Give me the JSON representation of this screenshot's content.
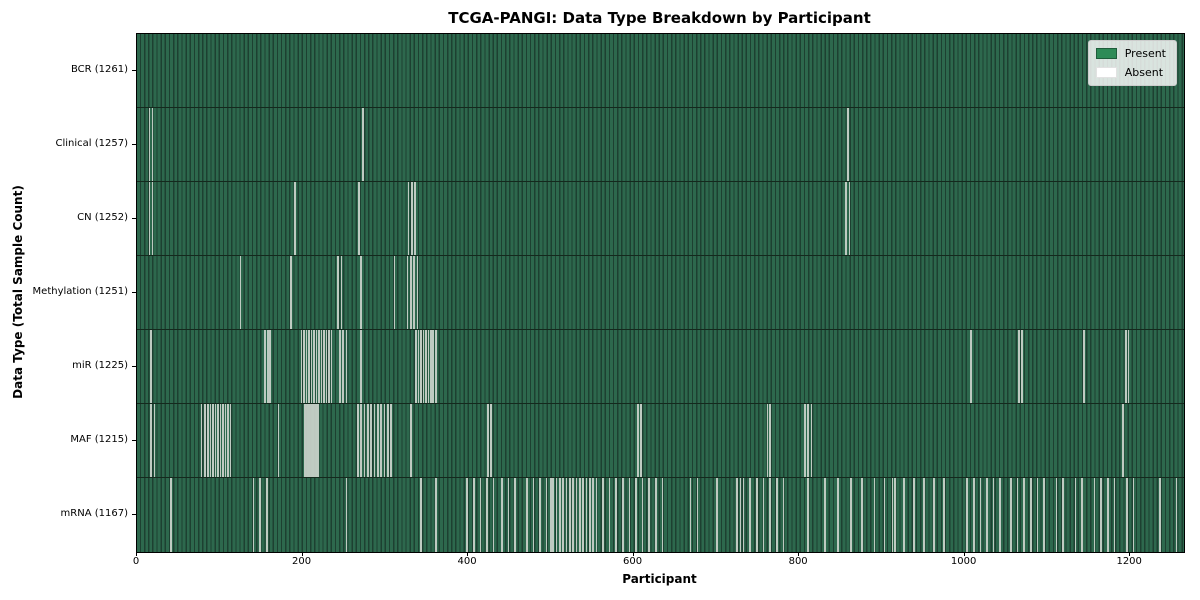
{
  "title": "TCGA-PANGI: Data Type Breakdown by Participant",
  "colors": {
    "present": "#2e8b57",
    "absent": "#ffffff",
    "cell_fill": "#2d684d",
    "cell_edge": "#1d4031",
    "row_divider": "#14291d",
    "legend_bg": "#d9ddd9",
    "axis": "#000000"
  },
  "legend": {
    "present_label": "Present",
    "absent_label": "Absent"
  },
  "chart_data": {
    "type": "heatmap",
    "title": "TCGA-PANGI: Data Type Breakdown by Participant",
    "xlabel": "Participant",
    "ylabel": "Data Type (Total Sample Count)",
    "legend": [
      "Present",
      "Absent"
    ],
    "legend_position": "upper right",
    "grid": false,
    "xlim": [
      0,
      1265
    ],
    "x_ticks": [
      0,
      200,
      400,
      600,
      800,
      1000,
      1200
    ],
    "n_participants": 1261,
    "rows": [
      {
        "name": "bcr",
        "label": "BCR (1261)",
        "data_type": "BCR",
        "sample_count": 1261,
        "absent_count": 0,
        "absent_participants": []
      },
      {
        "name": "clinical",
        "label": "Clinical (1257)",
        "data_type": "Clinical",
        "sample_count": 1257,
        "absent_count": 4,
        "absent_participants": [
          14,
          18,
          272,
          858
        ]
      },
      {
        "name": "cn",
        "label": "CN (1252)",
        "data_type": "CN",
        "sample_count": 1252,
        "absent_count": 9,
        "absent_participants": [
          14,
          18,
          190,
          267,
          327,
          331,
          335,
          856,
          860
        ]
      },
      {
        "name": "methylation",
        "label": "Methylation (1251)",
        "data_type": "Methylation",
        "sample_count": 1251,
        "absent_count": 10,
        "absent_participants": [
          124,
          185,
          242,
          246,
          270,
          310,
          326,
          330,
          334,
          338
        ]
      },
      {
        "name": "mir",
        "label": "miR (1225)",
        "data_type": "miR",
        "sample_count": 1225,
        "absent_count": 36,
        "absent_participants": [
          16,
          154,
          157,
          160,
          198,
          201,
          204,
          207,
          210,
          213,
          216,
          219,
          222,
          225,
          228,
          231,
          234,
          244,
          248,
          252,
          270,
          336,
          339,
          342,
          345,
          348,
          351,
          354,
          357,
          360,
          1007,
          1065,
          1068,
          1143,
          1194,
          1197
        ]
      },
      {
        "name": "maf",
        "label": "MAF (1215)",
        "data_type": "MAF",
        "sample_count": 1215,
        "absent_count": 46,
        "absent_participants": [
          16,
          20,
          77,
          81,
          85,
          88,
          91,
          94,
          97,
          100,
          103,
          106,
          109,
          112,
          170,
          202,
          204,
          206,
          208,
          210,
          212,
          214,
          216,
          218,
          266,
          270,
          274,
          278,
          282,
          286,
          290,
          294,
          298,
          302,
          306,
          330,
          423,
          427,
          604,
          608,
          761,
          764,
          806,
          810,
          814,
          1190
        ]
      },
      {
        "name": "mrna",
        "label": "mRNA (1167)",
        "data_type": "mRNA",
        "sample_count": 1167,
        "absent_count": 94,
        "absent_participants": [
          40,
          140,
          148,
          156,
          252,
          342,
          360,
          398,
          406,
          414,
          422,
          430,
          440,
          448,
          456,
          470,
          478,
          486,
          494,
          499,
          502,
          506,
          510,
          514,
          518,
          522,
          526,
          530,
          534,
          538,
          542,
          546,
          550,
          554,
          562,
          570,
          578,
          586,
          594,
          602,
          610,
          618,
          626,
          634,
          668,
          676,
          700,
          724,
          728,
          732,
          740,
          748,
          756,
          764,
          772,
          780,
          810,
          830,
          846,
          862,
          875,
          890,
          902,
          912,
          915,
          926,
          938,
          950,
          962,
          974,
          1002,
          1010,
          1018,
          1026,
          1034,
          1042,
          1055,
          1063,
          1071,
          1079,
          1087,
          1095,
          1110,
          1118,
          1133,
          1141,
          1156,
          1164,
          1172,
          1180,
          1195,
          1203,
          1235,
          1255
        ]
      }
    ]
  }
}
